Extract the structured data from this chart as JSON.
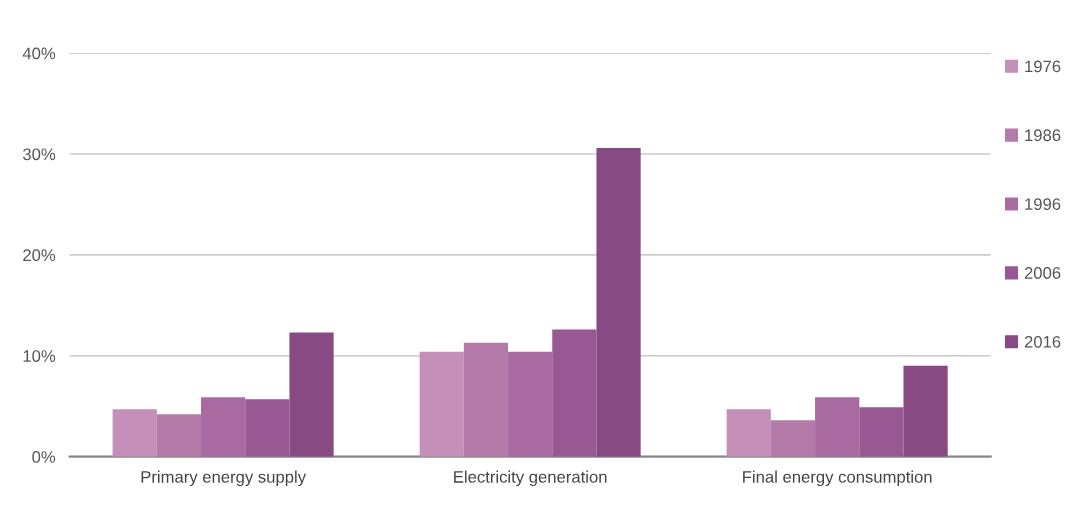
{
  "chart_data": {
    "type": "bar",
    "categories": [
      "Primary energy supply",
      "Electricity generation",
      "Final energy consumption"
    ],
    "series": [
      {
        "name": "1976",
        "color": "#c48fb8",
        "values": [
          4.7,
          10.4,
          4.7
        ]
      },
      {
        "name": "1986",
        "color": "#b47aa8",
        "values": [
          4.2,
          11.3,
          3.6
        ]
      },
      {
        "name": "1996",
        "color": "#a86aa0",
        "values": [
          5.9,
          10.4,
          5.9
        ]
      },
      {
        "name": "2006",
        "color": "#985894",
        "values": [
          5.7,
          12.6,
          4.9
        ]
      },
      {
        "name": "2016",
        "color": "#874a82",
        "values": [
          12.3,
          30.6,
          9.0
        ]
      }
    ],
    "ylim": [
      0,
      40
    ],
    "yticks": [
      {
        "value": 0,
        "label": "0%"
      },
      {
        "value": 10,
        "label": "10%"
      },
      {
        "value": 20,
        "label": "20%"
      },
      {
        "value": 30,
        "label": "30%"
      },
      {
        "value": 40,
        "label": "40%"
      }
    ],
    "grid": "y",
    "legend": "right"
  }
}
